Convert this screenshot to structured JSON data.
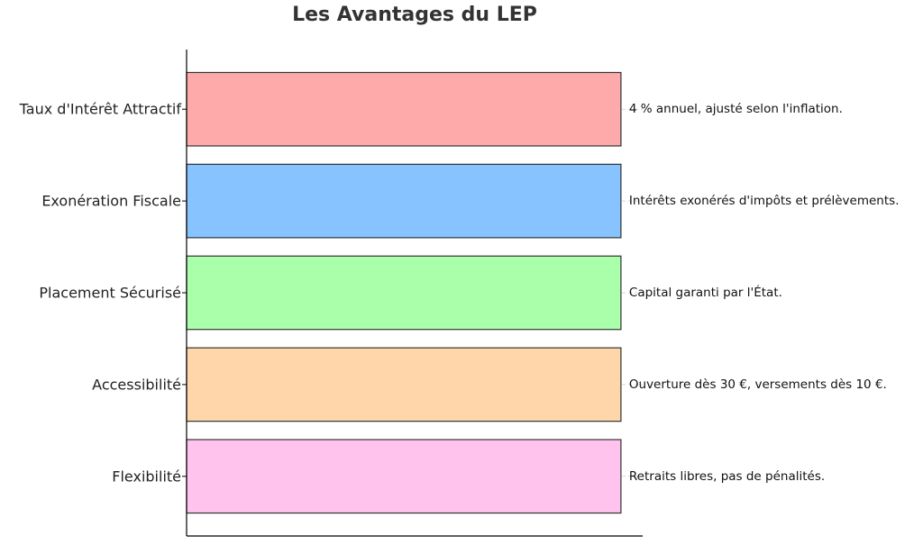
{
  "chart_data": {
    "type": "bar",
    "orientation": "horizontal",
    "title": "Les Avantages du LEP",
    "xlabel": "",
    "ylabel": "",
    "grid": true,
    "xlim": [
      0,
      1.05
    ],
    "categories": [
      "Taux d'Intérêt Attractif",
      "Exonération Fiscale",
      "Placement Sécurisé",
      "Accessibilité",
      "Flexibilité"
    ],
    "values": [
      1,
      1,
      1,
      1,
      1
    ],
    "annotations": [
      "4 % annuel, ajusté selon l'inflation.",
      "Intérêts exonérés d'impôts et prélèvements.",
      "Capital garanti par l'État.",
      "Ouverture dès 30 €, versements dès 10 €.",
      "Retraits libres, pas de pénalités."
    ],
    "colors": [
      "#ffaaaa",
      "#87c3ff",
      "#aaffaa",
      "#ffd5aa",
      "#ffc3ee"
    ],
    "bar_edge_color": "#333333"
  }
}
